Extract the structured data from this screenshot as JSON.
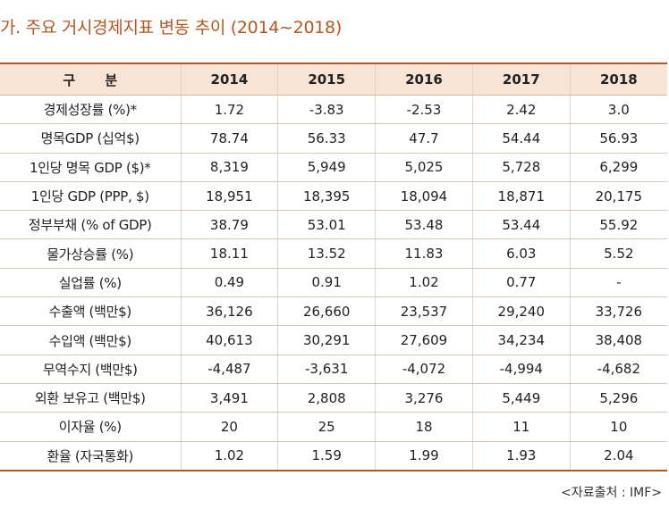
{
  "title": "가. 주요 거시경제지표 변동 추이 (2014~2018)",
  "table": {
    "header": [
      "구 분",
      "2014",
      "2015",
      "2016",
      "2017",
      "2018"
    ],
    "rows": [
      [
        "경제성장률 (%)*",
        "1.72",
        "-3.83",
        "-2.53",
        "2.42",
        "3.0"
      ],
      [
        "명목GDP (십억$)",
        "78.74",
        "56.33",
        "47.7",
        "54.44",
        "56.93"
      ],
      [
        "1인당 명목 GDP ($)*",
        "8,319",
        "5,949",
        "5,025",
        "5,728",
        "6,299"
      ],
      [
        "1인당 GDP (PPP, $)",
        "18,951",
        "18,395",
        "18,094",
        "18,871",
        "20,175"
      ],
      [
        "정부부채 (% of GDP)",
        "38.79",
        "53.01",
        "53.48",
        "53.44",
        "55.92"
      ],
      [
        "물가상승률 (%)",
        "18.11",
        "13.52",
        "11.83",
        "6.03",
        "5.52"
      ],
      [
        "실업률 (%)",
        "0.49",
        "0.91",
        "1.02",
        "0.77",
        "-"
      ],
      [
        "수출액 (백만$)",
        "36,126",
        "26,660",
        "23,537",
        "29,240",
        "33,726"
      ],
      [
        "수입액 (백만$)",
        "40,613",
        "30,291",
        "27,609",
        "34,234",
        "38,408"
      ],
      [
        "무역수지 (백만$)",
        "-4,487",
        "-3,631",
        "-4,072",
        "-4,994",
        "-4,682"
      ],
      [
        "외환 보유고 (백만$)",
        "3,491",
        "2,808",
        "3,276",
        "5,449",
        "5,296"
      ],
      [
        "이자율 (%)",
        "20",
        "25",
        "18",
        "11",
        "10"
      ],
      [
        "환율 (자국통화)",
        "1.02",
        "1.59",
        "1.99",
        "1.93",
        "2.04"
      ]
    ]
  },
  "source": "<자료출처 : IMF>",
  "colors": {
    "accent": "#b4571f",
    "header_bg": "#f7e4d4"
  }
}
